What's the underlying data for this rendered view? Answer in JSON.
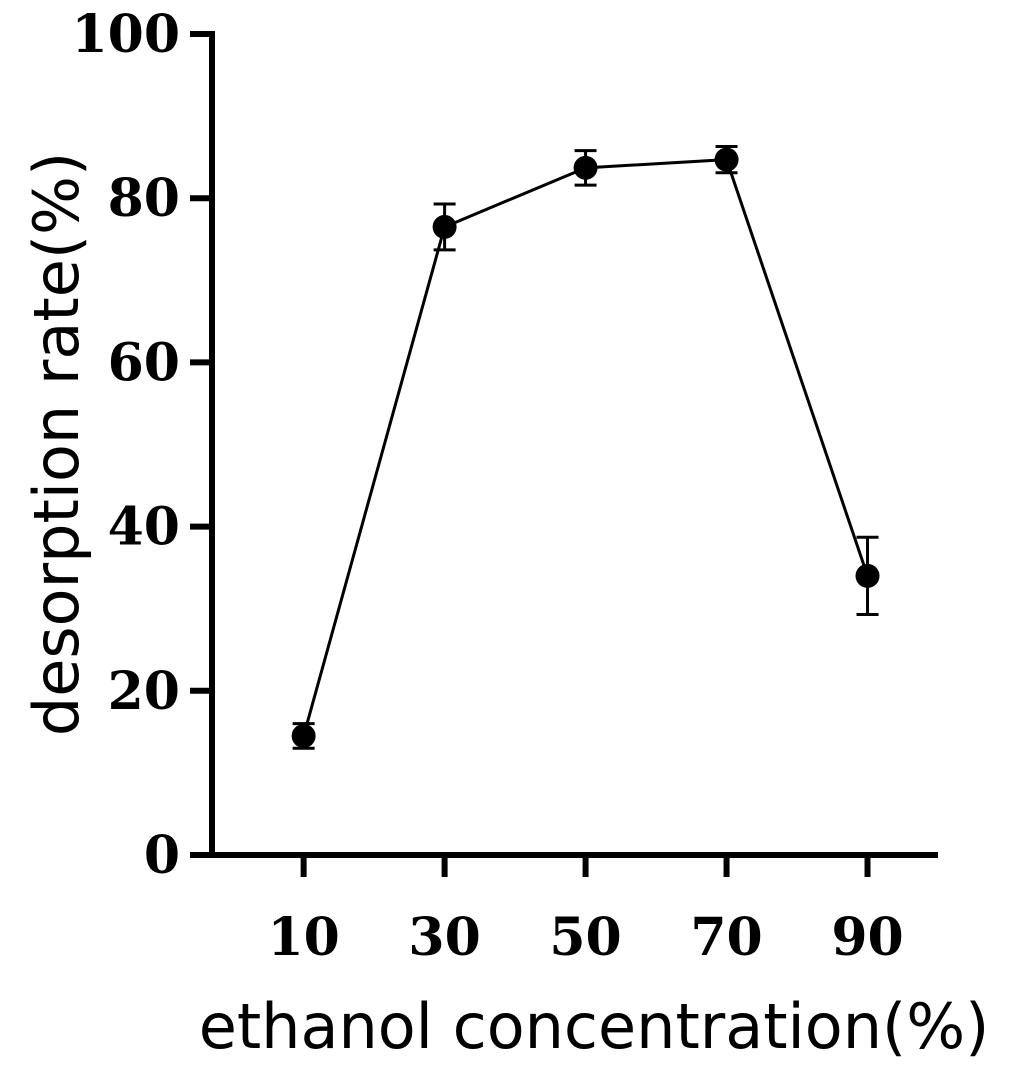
{
  "chart_data": {
    "type": "line",
    "xlabel": "ethanol concentration(%)",
    "ylabel": "desorption rate(%)",
    "x": [
      10,
      30,
      50,
      70,
      90
    ],
    "series": [
      {
        "values": [
          14.5,
          76.5,
          83.7,
          84.7,
          34.0
        ],
        "errors": [
          1.5,
          2.8,
          2.1,
          1.6,
          4.7
        ]
      }
    ],
    "x_ticks": [
      "10",
      "30",
      "50",
      "70",
      "90"
    ],
    "y_ticks": [
      "0",
      "20",
      "40",
      "60",
      "80",
      "100"
    ],
    "xlim": [
      -3,
      100
    ],
    "ylim": [
      0,
      100
    ],
    "grid": false,
    "marker": "filled-circle",
    "line_color": "#000000"
  }
}
